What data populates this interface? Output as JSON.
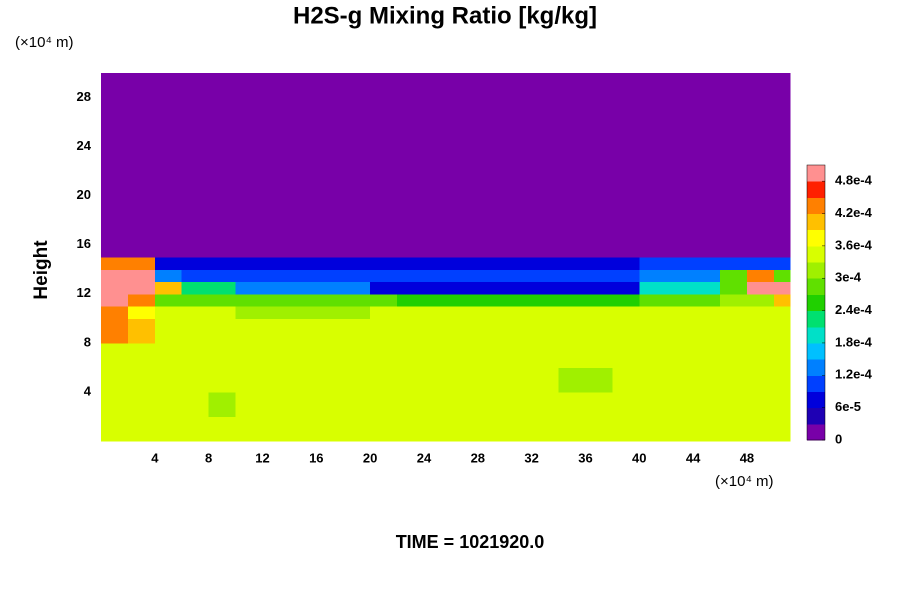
{
  "chart_data": {
    "type": "heatmap",
    "title": "H2S-g Mixing Ratio [kg/kg]",
    "ylabel": "Height",
    "x_unit_label": "(×10⁴ m)",
    "y_unit_label": "(×10⁴ m)",
    "footer": "TIME = 1021920.0",
    "xlim": [
      0,
      51.2
    ],
    "ylim": [
      0,
      30
    ],
    "xticks": [
      4,
      8,
      12,
      16,
      20,
      24,
      28,
      32,
      36,
      40,
      44,
      48
    ],
    "yticks": [
      4,
      8,
      12,
      16,
      20,
      24,
      28
    ],
    "x_edges": [
      0,
      2,
      4,
      6,
      8,
      10,
      12,
      14,
      16,
      18,
      20,
      22,
      24,
      26,
      28,
      30,
      32,
      34,
      36,
      38,
      40,
      42,
      44,
      46,
      48,
      50,
      51.2
    ],
    "y_edges": [
      0,
      2,
      4,
      6,
      8,
      10,
      11,
      12,
      13,
      14,
      15,
      30
    ],
    "z": [
      [
        0.00035,
        0.00035,
        0.00035,
        0.00035,
        0.00035,
        0.00035,
        0.00035,
        0.00035,
        0.00035,
        0.00035,
        0.00035,
        0.00035,
        0.00035,
        0.00035,
        0.00035,
        0.00035,
        0.00035,
        0.00035,
        0.00035,
        0.00035,
        0.00035,
        0.00035,
        0.00035,
        0.00035,
        0.00035,
        0.00035
      ],
      [
        0.00035,
        0.00035,
        0.00035,
        0.00035,
        0.00032,
        0.00035,
        0.00035,
        0.00035,
        0.00035,
        0.00035,
        0.00035,
        0.00035,
        0.00035,
        0.00035,
        0.00035,
        0.00035,
        0.00035,
        0.00035,
        0.00035,
        0.00035,
        0.00035,
        0.00035,
        0.00035,
        0.00035,
        0.00035,
        0.00035
      ],
      [
        0.00035,
        0.00035,
        0.00035,
        0.00035,
        0.00035,
        0.00035,
        0.00035,
        0.00035,
        0.00035,
        0.00035,
        0.00035,
        0.00035,
        0.00035,
        0.00035,
        0.00035,
        0.00035,
        0.00035,
        0.00032,
        0.00032,
        0.00035,
        0.00035,
        0.00035,
        0.00035,
        0.00035,
        0.00035,
        0.00035
      ],
      [
        0.00035,
        0.00035,
        0.00035,
        0.00035,
        0.00035,
        0.00035,
        0.00035,
        0.00035,
        0.00035,
        0.00035,
        0.00035,
        0.00035,
        0.00035,
        0.00035,
        0.00035,
        0.00035,
        0.00035,
        0.00035,
        0.00035,
        0.00035,
        0.00035,
        0.00035,
        0.00035,
        0.00035,
        0.00035,
        0.00035
      ],
      [
        0.00042,
        0.00039,
        0.00035,
        0.00035,
        0.00035,
        0.00035,
        0.00035,
        0.00035,
        0.00035,
        0.00035,
        0.00035,
        0.00035,
        0.00035,
        0.00035,
        0.00035,
        0.00035,
        0.00035,
        0.00035,
        0.00035,
        0.00035,
        0.00035,
        0.00035,
        0.00035,
        0.00035,
        0.00035,
        0.00035
      ],
      [
        0.00045,
        0.00038,
        0.00035,
        0.00035,
        0.00035,
        0.00032,
        0.00032,
        0.00032,
        0.00032,
        0.00032,
        0.00035,
        0.00035,
        0.00035,
        0.00035,
        0.00035,
        0.00035,
        0.00035,
        0.00035,
        0.00035,
        0.00035,
        0.00035,
        0.00035,
        0.00035,
        0.00035,
        0.00035,
        0.00035
      ],
      [
        0.00048,
        0.00045,
        0.0003,
        0.0003,
        0.0003,
        0.0003,
        0.0003,
        0.0003,
        0.00027,
        0.00027,
        0.00027,
        0.00024,
        0.00024,
        0.00024,
        0.00024,
        0.00024,
        0.00024,
        0.00024,
        0.00024,
        0.00024,
        0.0003,
        0.0003,
        0.0003,
        0.00033,
        0.00033,
        0.00039
      ],
      [
        0.0005,
        0.0005,
        0.00039,
        0.00021,
        0.00021,
        0.00012,
        0.00012,
        0.00012,
        0.00012,
        0.00012,
        6e-05,
        6e-05,
        6e-05,
        6e-05,
        6e-05,
        6e-05,
        6e-05,
        6e-05,
        6e-05,
        6e-05,
        0.00018,
        0.00018,
        0.00018,
        0.00027,
        0.0005,
        0.0005
      ],
      [
        0.0005,
        0.0005,
        0.00015,
        9e-05,
        9e-05,
        9e-05,
        9e-05,
        9e-05,
        9e-05,
        9e-05,
        9e-05,
        9e-05,
        9e-05,
        9e-05,
        9e-05,
        9e-05,
        9e-05,
        9e-05,
        9e-05,
        9e-05,
        0.00012,
        0.00012,
        0.00012,
        0.0003,
        0.00042,
        0.0003
      ],
      [
        0.00042,
        0.00042,
        6e-05,
        6e-05,
        6e-05,
        6e-05,
        6e-05,
        6e-05,
        6e-05,
        6e-05,
        6e-05,
        6e-05,
        6e-05,
        6e-05,
        6e-05,
        6e-05,
        6e-05,
        6e-05,
        6e-05,
        6e-05,
        9e-05,
        9e-05,
        9e-05,
        9e-05,
        9e-05,
        9e-05
      ],
      [
        0,
        0,
        0,
        0,
        0,
        0,
        0,
        0,
        0,
        0,
        0,
        0,
        0,
        0,
        0,
        0,
        0,
        0,
        0,
        0,
        0,
        0,
        0,
        0,
        0,
        0
      ]
    ],
    "clim": [
      0,
      0.00051
    ],
    "colormap": [
      "#7800a8",
      "#1e00b4",
      "#0000dc",
      "#0040ff",
      "#0080ff",
      "#00c0ff",
      "#00e0c8",
      "#00e070",
      "#20d000",
      "#60e000",
      "#a0f000",
      "#d8ff00",
      "#ffff00",
      "#ffc000",
      "#ff8000",
      "#ff2000",
      "#ff9090"
    ],
    "cticks": [
      0,
      {
        "value": 6e-05,
        "label": "6e-5"
      },
      {
        "value": 0.00012,
        "label": "1.2e-4"
      },
      {
        "value": 0.00018,
        "label": "1.8e-4"
      },
      {
        "value": 0.00024,
        "label": "2.4e-4"
      },
      {
        "value": 0.0003,
        "label": "3e-4"
      },
      {
        "value": 0.00036,
        "label": "3.6e-4"
      },
      {
        "value": 0.00042,
        "label": "4.2e-4"
      },
      {
        "value": 0.00048,
        "label": "4.8e-4"
      }
    ]
  }
}
